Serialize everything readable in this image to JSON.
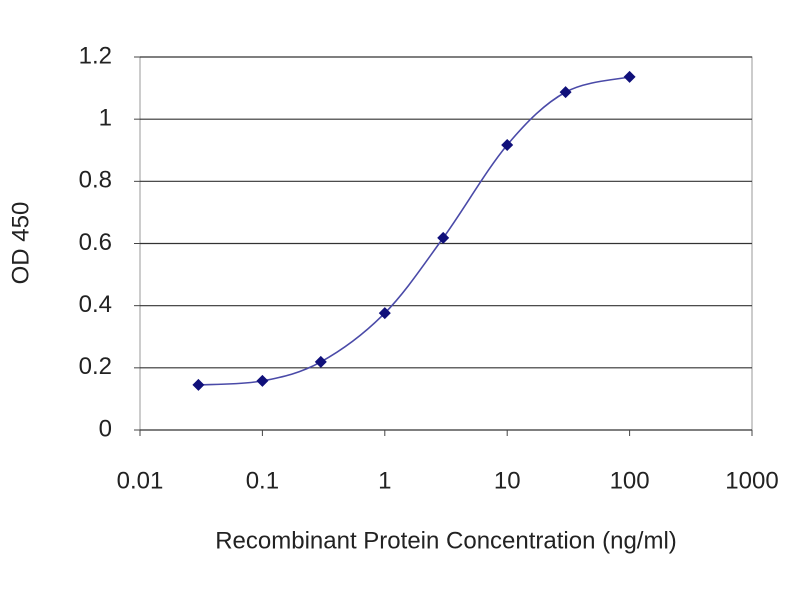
{
  "chart_data": {
    "type": "line",
    "x_label": "Recombinant Protein Concentration (ng/ml)",
    "y_label": "OD 450",
    "x": [
      0.03,
      0.1,
      0.3,
      1,
      3,
      10,
      30,
      100
    ],
    "series": [
      {
        "color": "#10107a",
        "values": [
          0.145,
          0.158,
          0.219,
          0.376,
          0.618,
          0.917,
          1.087,
          1.136
        ]
      }
    ],
    "line_color": "#4a4aa8",
    "xlim": [
      0.01,
      1000
    ],
    "xticks": [
      0.01,
      0.1,
      1,
      10,
      100,
      1000
    ],
    "ylim": [
      0,
      1.2
    ],
    "yticks": [
      0,
      0.2,
      0.4,
      0.6,
      0.8,
      1,
      1.2
    ],
    "log_x": true,
    "grid": "y",
    "smooth": true
  }
}
